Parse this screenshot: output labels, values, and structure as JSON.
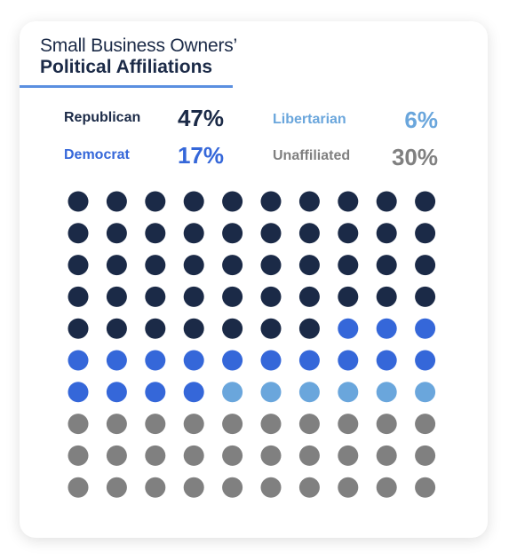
{
  "title": {
    "line1": "Small Business Owners’",
    "line2": "Political Affiliations"
  },
  "legend": [
    {
      "label": "Republican",
      "value": "47%",
      "color": "#1b2a47"
    },
    {
      "label": "Democrat",
      "value": "17%",
      "color": "#3567d9"
    },
    {
      "label": "Libertarian",
      "value": "6%",
      "color": "#6aa6dc"
    },
    {
      "label": "Unaffiliated",
      "value": "30%",
      "color": "#808080"
    }
  ],
  "chart_data": {
    "type": "waffle",
    "grid": {
      "rows": 10,
      "cols": 10
    },
    "series": [
      {
        "name": "Republican",
        "value": 47,
        "color": "#1b2a47"
      },
      {
        "name": "Democrat",
        "value": 17,
        "color": "#3567d9"
      },
      {
        "name": "Libertarian",
        "value": 6,
        "color": "#6aa6dc"
      },
      {
        "name": "Unaffiliated",
        "value": 30,
        "color": "#808080"
      }
    ]
  }
}
